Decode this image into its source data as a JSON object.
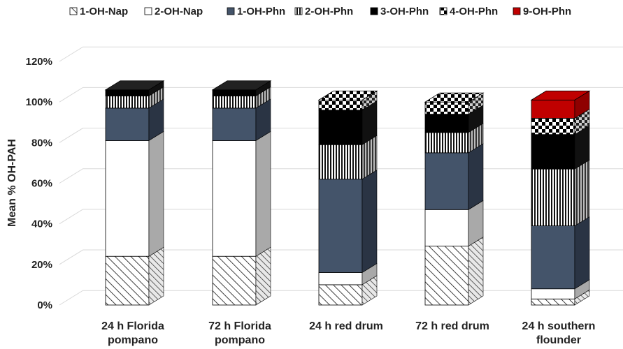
{
  "chart_data": {
    "type": "bar",
    "stacked": true,
    "three_d": true,
    "title": "",
    "xlabel": "",
    "ylabel": "Mean % OH-PAH",
    "ylim": [
      0,
      120
    ],
    "yticks": [
      "0%",
      "20%",
      "40%",
      "60%",
      "80%",
      "100%",
      "120%"
    ],
    "grid": true,
    "legend_position": "top",
    "categories": [
      [
        "24 h Florida",
        "pompano"
      ],
      [
        "72 h Florida",
        "pompano"
      ],
      [
        "24 h red drum"
      ],
      [
        "72 h red drum"
      ],
      [
        "24 h southern",
        "flounder"
      ]
    ],
    "series": [
      {
        "name": "1-OH-Nap",
        "pattern": "diag-hatch",
        "values": [
          24,
          24,
          10,
          29,
          3
        ]
      },
      {
        "name": "2-OH-Nap",
        "pattern": "white",
        "values": [
          57,
          57,
          6,
          18,
          5
        ]
      },
      {
        "name": "1-OH-Phn",
        "pattern": "slate",
        "values": [
          16,
          16,
          46,
          28,
          31
        ]
      },
      {
        "name": "2-OH-Phn",
        "pattern": "vertical-stripes",
        "values": [
          6,
          6,
          17,
          10,
          28
        ]
      },
      {
        "name": "3-OH-Phn",
        "pattern": "black",
        "values": [
          3,
          3,
          17,
          9,
          17
        ]
      },
      {
        "name": "4-OH-Phn",
        "pattern": "checker",
        "values": [
          0,
          0,
          5,
          6,
          8
        ]
      },
      {
        "name": "9-OH-Phn",
        "pattern": "red",
        "values": [
          0,
          0,
          0,
          0,
          9
        ]
      }
    ]
  }
}
